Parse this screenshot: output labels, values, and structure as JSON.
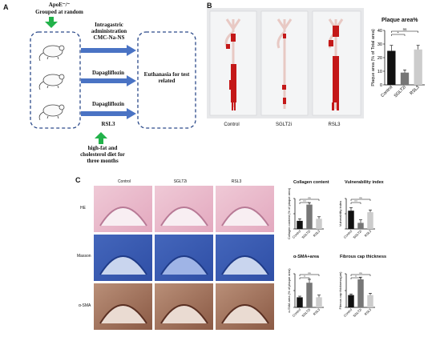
{
  "panelA": {
    "letter": "A",
    "apoe": "ApoE⁻/⁻",
    "grouped": "Grouped at random",
    "arrow1_label_line1": "Intragastric",
    "arrow1_label_line2": "administration",
    "arrow1_label_line3": "CMC-Na-NS",
    "arrow2_label": "Dapagliflozin",
    "arrow3_label_line1": "Dapagliflozin",
    "arrow3_label_line2": "RSL3",
    "diet_line1": "high-fat and",
    "diet_line2": "cholesterol diet for",
    "diet_line3": "three months",
    "euth_line1": "Euthanasia for test",
    "euth_line2": "related",
    "colors": {
      "arrow": "#4a73c4",
      "green": "#22b24a",
      "dashed": "#2c4a8a"
    }
  },
  "panelB": {
    "letter": "B",
    "photo_labels": [
      "Control",
      "SGLT2i",
      "RSL3"
    ],
    "chart_title": "Plaque area%"
  },
  "panelC": {
    "letter": "C",
    "col_labels": [
      "Control",
      "SGLT2i",
      "RSL3"
    ],
    "row_labels": [
      "HE",
      "Masson",
      "α-SMA"
    ],
    "titles": {
      "collagen": "Collagen content",
      "vulnerability": "Vulnerability index",
      "asma": "α-SMA+area",
      "fibrous": "Fibrous cap thickness"
    }
  },
  "chart_data": [
    {
      "type": "bar",
      "title": "Plaque area%",
      "ylabel": "Plaque area (% of Total area)",
      "categories": [
        "Control",
        "SGLT2i",
        "RSL3"
      ],
      "values": [
        25,
        9,
        26
      ],
      "errors": [
        4,
        2,
        3
      ],
      "ylim": [
        0,
        40
      ],
      "yticks": [
        0,
        10,
        20,
        30,
        40
      ],
      "colors": [
        "#111111",
        "#777777",
        "#cccccc"
      ],
      "sig": [
        "*",
        "ns"
      ]
    },
    {
      "type": "bar",
      "title": "Collagen content",
      "ylabel": "Collagen content (% of plaque area)",
      "categories": [
        "Control",
        "SGLT2i",
        "RSL3"
      ],
      "values": [
        8,
        24,
        10
      ],
      "errors": [
        2,
        2,
        2
      ],
      "ylim": [
        0,
        30
      ],
      "colors": [
        "#111111",
        "#777777",
        "#cccccc"
      ],
      "sig": [
        "***",
        "ns"
      ]
    },
    {
      "type": "bar",
      "title": "Vulnerability index",
      "ylabel": "Vulnerability index",
      "categories": [
        "Control",
        "SGLT2i",
        "RSL3"
      ],
      "values": [
        1.2,
        0.4,
        1.1
      ],
      "errors": [
        0.2,
        0.2,
        0.15
      ],
      "ylim": [
        0,
        2
      ],
      "colors": [
        "#111111",
        "#777777",
        "#cccccc"
      ],
      "sig": [
        "***",
        "ns"
      ]
    },
    {
      "type": "bar",
      "title": "α-SMA+area",
      "ylabel": "α-SMA area (% of plaque area)",
      "categories": [
        "Control",
        "SGLT2i",
        "RSL3"
      ],
      "values": [
        9,
        22,
        9
      ],
      "errors": [
        1,
        3,
        2
      ],
      "ylim": [
        0,
        30
      ],
      "colors": [
        "#111111",
        "#777777",
        "#cccccc"
      ],
      "sig": [
        "**",
        "ns"
      ]
    },
    {
      "type": "bar",
      "title": "Fibrous cap thickness",
      "ylabel": "Fibrous cap thickness(μm)",
      "categories": [
        "Control",
        "SGLT2i",
        "RSL3"
      ],
      "values": [
        55,
        125,
        55
      ],
      "errors": [
        5,
        10,
        8
      ],
      "ylim": [
        0,
        150
      ],
      "colors": [
        "#111111",
        "#777777",
        "#cccccc"
      ],
      "sig": [
        "**",
        "ns"
      ]
    }
  ]
}
